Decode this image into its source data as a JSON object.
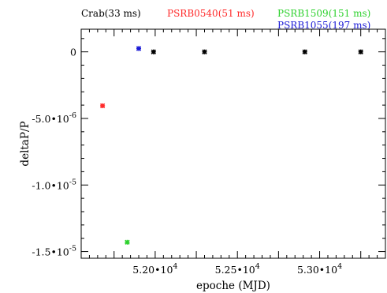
{
  "chart_data": {
    "type": "scatter",
    "xlabel": "epoche (MJD)",
    "ylabel": "deltaP/P",
    "xlim": [
      51550,
      53400
    ],
    "ylim": [
      -1.55e-05,
      1.7e-06
    ],
    "x_ticks": [
      {
        "value": 52000,
        "mant": "5.20•",
        "exp": "4"
      },
      {
        "value": 52500,
        "mant": "5.25•",
        "exp": "4"
      },
      {
        "value": 53000,
        "mant": "5.30•",
        "exp": "4"
      }
    ],
    "y_ticks": [
      {
        "value": 0,
        "mant": "0",
        "exp": ""
      },
      {
        "value": -5e-06,
        "mant": "-5.0•",
        "exp": "-6"
      },
      {
        "value": -1e-05,
        "mant": "-1.0•",
        "exp": "-5"
      },
      {
        "value": -1.5e-05,
        "mant": "-1.5•",
        "exp": "-5"
      }
    ],
    "series": [
      {
        "name": "Crab(33 ms)",
        "color": "#000000",
        "marker": "asterisk",
        "points": [
          [
            51990,
            0
          ],
          [
            52300,
            0
          ],
          [
            52910,
            0
          ],
          [
            53250,
            0
          ]
        ]
      },
      {
        "name": "PSRB0540(51 ms)",
        "color": "#ff2a2a",
        "marker": "asterisk",
        "points": [
          [
            51680,
            -4.05e-06
          ]
        ]
      },
      {
        "name": "PSRB1509(151 ms)",
        "color": "#2ed12e",
        "marker": "asterisk",
        "points": [
          [
            51830,
            -1.43e-05
          ]
        ]
      },
      {
        "name": "PSRB1055(197 ms)",
        "color": "#1a1ad6",
        "marker": "asterisk",
        "points": [
          [
            51900,
            2.5e-07
          ]
        ]
      }
    ],
    "legend_placement": "top"
  }
}
